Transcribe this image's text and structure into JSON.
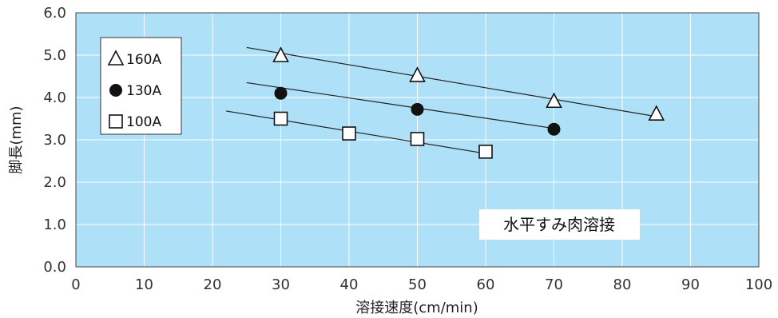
{
  "chart_data": {
    "type": "scatter",
    "xlabel": "溶接速度(cm/min)",
    "ylabel": "脚長(mm)",
    "xlim": [
      0,
      100
    ],
    "ylim": [
      0.0,
      6.0
    ],
    "x_ticks": [
      "0",
      "10",
      "20",
      "30",
      "40",
      "50",
      "60",
      "70",
      "80",
      "90",
      "100"
    ],
    "y_ticks": [
      "0.0",
      "1.0",
      "2.0",
      "3.0",
      "4.0",
      "5.0",
      "6.0"
    ],
    "grid": true,
    "legend_position": "top-left",
    "annotation": "水平すみ肉溶接",
    "colors": {
      "plot_bg": "#aee0f7",
      "grid": "#ffffff",
      "marker": "#111111"
    },
    "series": [
      {
        "name": "160A",
        "marker": "triangle",
        "points": [
          [
            30,
            5.0
          ],
          [
            50,
            4.53
          ],
          [
            70,
            3.92
          ],
          [
            85,
            3.62
          ]
        ],
        "trend": [
          [
            25,
            5.18
          ],
          [
            85,
            3.55
          ]
        ]
      },
      {
        "name": "130A",
        "marker": "circle",
        "points": [
          [
            30,
            4.1
          ],
          [
            50,
            3.72
          ],
          [
            70,
            3.25
          ]
        ],
        "trend": [
          [
            25,
            4.35
          ],
          [
            70,
            3.27
          ]
        ]
      },
      {
        "name": "100A",
        "marker": "square",
        "points": [
          [
            30,
            3.5
          ],
          [
            40,
            3.15
          ],
          [
            50,
            3.02
          ],
          [
            60,
            2.72
          ]
        ],
        "trend": [
          [
            22,
            3.68
          ],
          [
            61,
            2.65
          ]
        ]
      }
    ]
  }
}
